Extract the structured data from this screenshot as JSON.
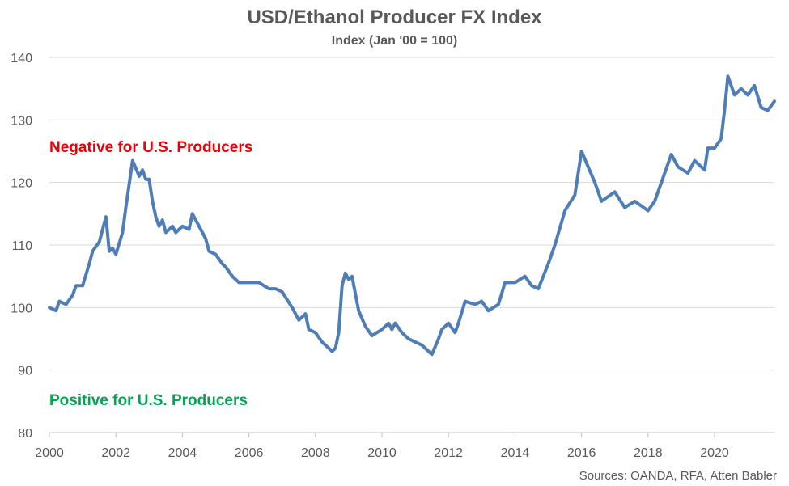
{
  "chart_data": {
    "type": "line",
    "title": "USD/Ethanol Producer FX Index",
    "subtitle": "Index (Jan '00 = 100)",
    "xlabel": "",
    "ylabel": "",
    "ylim": [
      80,
      140
    ],
    "yticks": [
      80,
      90,
      100,
      110,
      120,
      130,
      140
    ],
    "xlim": [
      2000,
      2021.8
    ],
    "xticks": [
      2000,
      2002,
      2004,
      2006,
      2008,
      2010,
      2012,
      2014,
      2016,
      2018,
      2020
    ],
    "grid": "horizontal",
    "legend": "none",
    "series": [
      {
        "color": "#4F7DB8",
        "x": [
          2000.0,
          2000.2,
          2000.3,
          2000.5,
          2000.7,
          2000.8,
          2001.0,
          2001.2,
          2001.3,
          2001.5,
          2001.7,
          2001.8,
          2001.9,
          2002.0,
          2002.2,
          2002.3,
          2002.5,
          2002.7,
          2002.8,
          2002.9,
          2003.0,
          2003.1,
          2003.2,
          2003.3,
          2003.4,
          2003.5,
          2003.7,
          2003.8,
          2004.0,
          2004.2,
          2004.3,
          2004.5,
          2004.6,
          2004.7,
          2004.8,
          2005.0,
          2005.2,
          2005.3,
          2005.5,
          2005.7,
          2006.0,
          2006.3,
          2006.6,
          2006.8,
          2007.0,
          2007.3,
          2007.5,
          2007.7,
          2007.8,
          2008.0,
          2008.2,
          2008.4,
          2008.5,
          2008.6,
          2008.7,
          2008.8,
          2008.9,
          2009.0,
          2009.1,
          2009.3,
          2009.5,
          2009.7,
          2010.0,
          2010.2,
          2010.3,
          2010.4,
          2010.6,
          2010.8,
          2011.0,
          2011.2,
          2011.4,
          2011.5,
          2011.7,
          2011.8,
          2012.0,
          2012.2,
          2012.3,
          2012.5,
          2012.8,
          2013.0,
          2013.2,
          2013.5,
          2013.7,
          2014.0,
          2014.3,
          2014.5,
          2014.7,
          2015.0,
          2015.2,
          2015.5,
          2015.8,
          2016.0,
          2016.2,
          2016.4,
          2016.6,
          2017.0,
          2017.3,
          2017.6,
          2018.0,
          2018.2,
          2018.5,
          2018.7,
          2018.9,
          2019.2,
          2019.4,
          2019.7,
          2019.8,
          2020.0,
          2020.2,
          2020.3,
          2020.4,
          2020.6,
          2020.8,
          2021.0,
          2021.2,
          2021.4,
          2021.6,
          2021.8
        ],
        "values": [
          100.0,
          99.5,
          101.0,
          100.5,
          102.0,
          103.5,
          103.5,
          107.0,
          109.0,
          110.5,
          114.5,
          109.0,
          109.5,
          108.5,
          112.0,
          116.0,
          123.5,
          121.0,
          122.0,
          120.5,
          120.5,
          117.0,
          114.5,
          113.0,
          114.0,
          112.0,
          113.0,
          112.0,
          113.0,
          112.5,
          115.0,
          113.0,
          112.0,
          111.0,
          109.0,
          108.5,
          107.0,
          106.5,
          105.0,
          104.0,
          104.0,
          104.0,
          103.0,
          103.0,
          102.5,
          100.0,
          98.0,
          99.0,
          96.5,
          96.0,
          94.5,
          93.5,
          93.0,
          93.5,
          96.0,
          103.5,
          105.5,
          104.5,
          105.0,
          99.5,
          97.0,
          95.5,
          96.5,
          97.5,
          96.5,
          97.5,
          96.0,
          95.0,
          94.5,
          94.0,
          93.0,
          92.5,
          95.0,
          96.5,
          97.5,
          96.0,
          97.5,
          101.0,
          100.5,
          101.0,
          99.5,
          100.5,
          104.0,
          104.0,
          105.0,
          103.5,
          103.0,
          107.0,
          110.0,
          115.5,
          118.0,
          125.0,
          122.5,
          120.0,
          117.0,
          118.5,
          116.0,
          117.0,
          115.5,
          117.0,
          121.5,
          124.5,
          122.5,
          121.5,
          123.5,
          122.0,
          125.5,
          125.5,
          127.0,
          131.5,
          137.0,
          134.0,
          135.0,
          134.0,
          135.5,
          132.0,
          131.5,
          133.0
        ]
      }
    ],
    "annotations": {
      "negative": "Negative for U.S. Producers",
      "positive": "Positive for U.S. Producers",
      "negative_color": "#E8000B",
      "positive_color": "#00A651"
    },
    "source": "Sources: OANDA, RFA, Atten Babler"
  }
}
